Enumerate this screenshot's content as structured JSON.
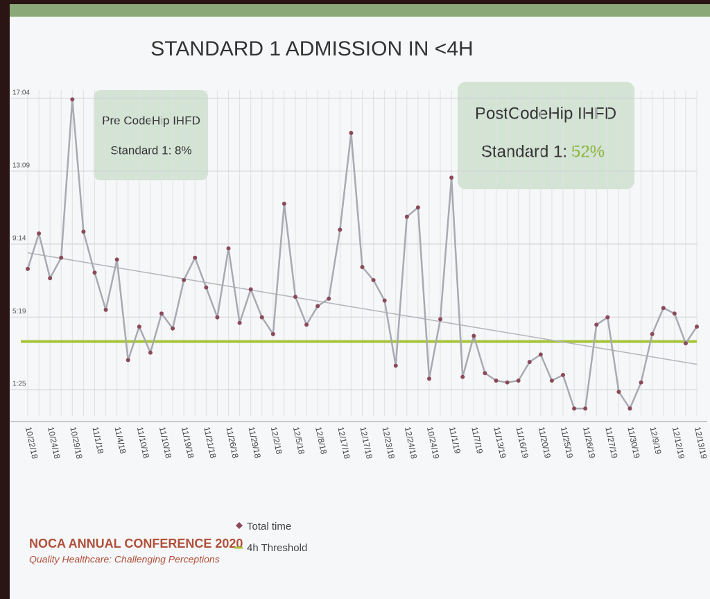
{
  "chart_data": {
    "type": "line",
    "title": "STANDARD 1 ADMISSION IN <4H",
    "annotations": [
      {
        "lines": [
          "Pre CodeHip IHFD",
          "Standard 1: 8%"
        ]
      },
      {
        "lines": [
          "PostCodeHip IHFD",
          "Standard 1:",
          "52%"
        ]
      }
    ],
    "categories": [
      "10/22/18",
      null,
      "10/24/18",
      null,
      "10/29/18",
      null,
      "11/1/18",
      null,
      "11/4/18",
      null,
      "11/10/18",
      null,
      "11/10/18",
      null,
      "11/19/18",
      null,
      "11/21/18",
      null,
      "11/26/18",
      null,
      "11/29/18",
      null,
      "12/2/18",
      null,
      "12/5/18",
      null,
      "12/8/18",
      null,
      "12/17/18",
      null,
      "12/17/18",
      null,
      "12/23/18",
      null,
      "12/24/18",
      null,
      "10/24/19",
      null,
      "11/1/19",
      null,
      "11/7/19",
      null,
      "11/13/19",
      null,
      "11/16/19",
      null,
      "11/20/19",
      null,
      "11/25/19",
      null,
      "11/26/19",
      null,
      "11/27/19",
      null,
      "11/30/19",
      null,
      "12/9/19",
      null,
      "12/12/19",
      null,
      "12/13/19"
    ],
    "series": [
      {
        "name": "Total time",
        "color": "#a9a9b3",
        "marker_color": "#8a4a5a",
        "values": [
          7.9,
          9.8,
          7.4,
          8.5,
          17.0,
          9.9,
          7.7,
          5.7,
          8.4,
          3.0,
          4.8,
          3.4,
          5.5,
          4.7,
          7.3,
          8.5,
          6.9,
          5.3,
          9.0,
          5.0,
          6.8,
          5.3,
          4.4,
          11.4,
          6.4,
          4.9,
          5.9,
          6.3,
          10.0,
          15.2,
          8.0,
          7.3,
          6.2,
          2.7,
          10.7,
          11.2,
          2.0,
          5.2,
          12.8,
          2.1,
          4.3,
          2.3,
          1.9,
          1.8,
          1.9,
          2.9,
          3.3,
          1.9,
          2.2,
          0.4,
          0.4,
          4.9,
          5.3,
          1.3,
          0.4,
          1.8,
          4.4,
          5.8,
          5.5,
          3.9,
          4.8
        ]
      }
    ],
    "threshold": {
      "name": "4h Threshold",
      "value": 4,
      "color": "#a8c43a"
    },
    "trendline": true,
    "ylim": [
      0,
      17.5
    ],
    "yticks": [
      {
        "value": 1.4167,
        "label": "1:25"
      },
      {
        "value": 5.3167,
        "label": "5:19"
      },
      {
        "value": 9.2333,
        "label": "9:14"
      },
      {
        "value": 13.15,
        "label": "13:09"
      },
      {
        "value": 17.0667,
        "label": "17:04"
      }
    ],
    "grid": true
  },
  "footer": {
    "title": "NOCA ANNUAL CONFERENCE 2020",
    "subtitle": "Quality Healthcare: Challenging Perceptions"
  }
}
